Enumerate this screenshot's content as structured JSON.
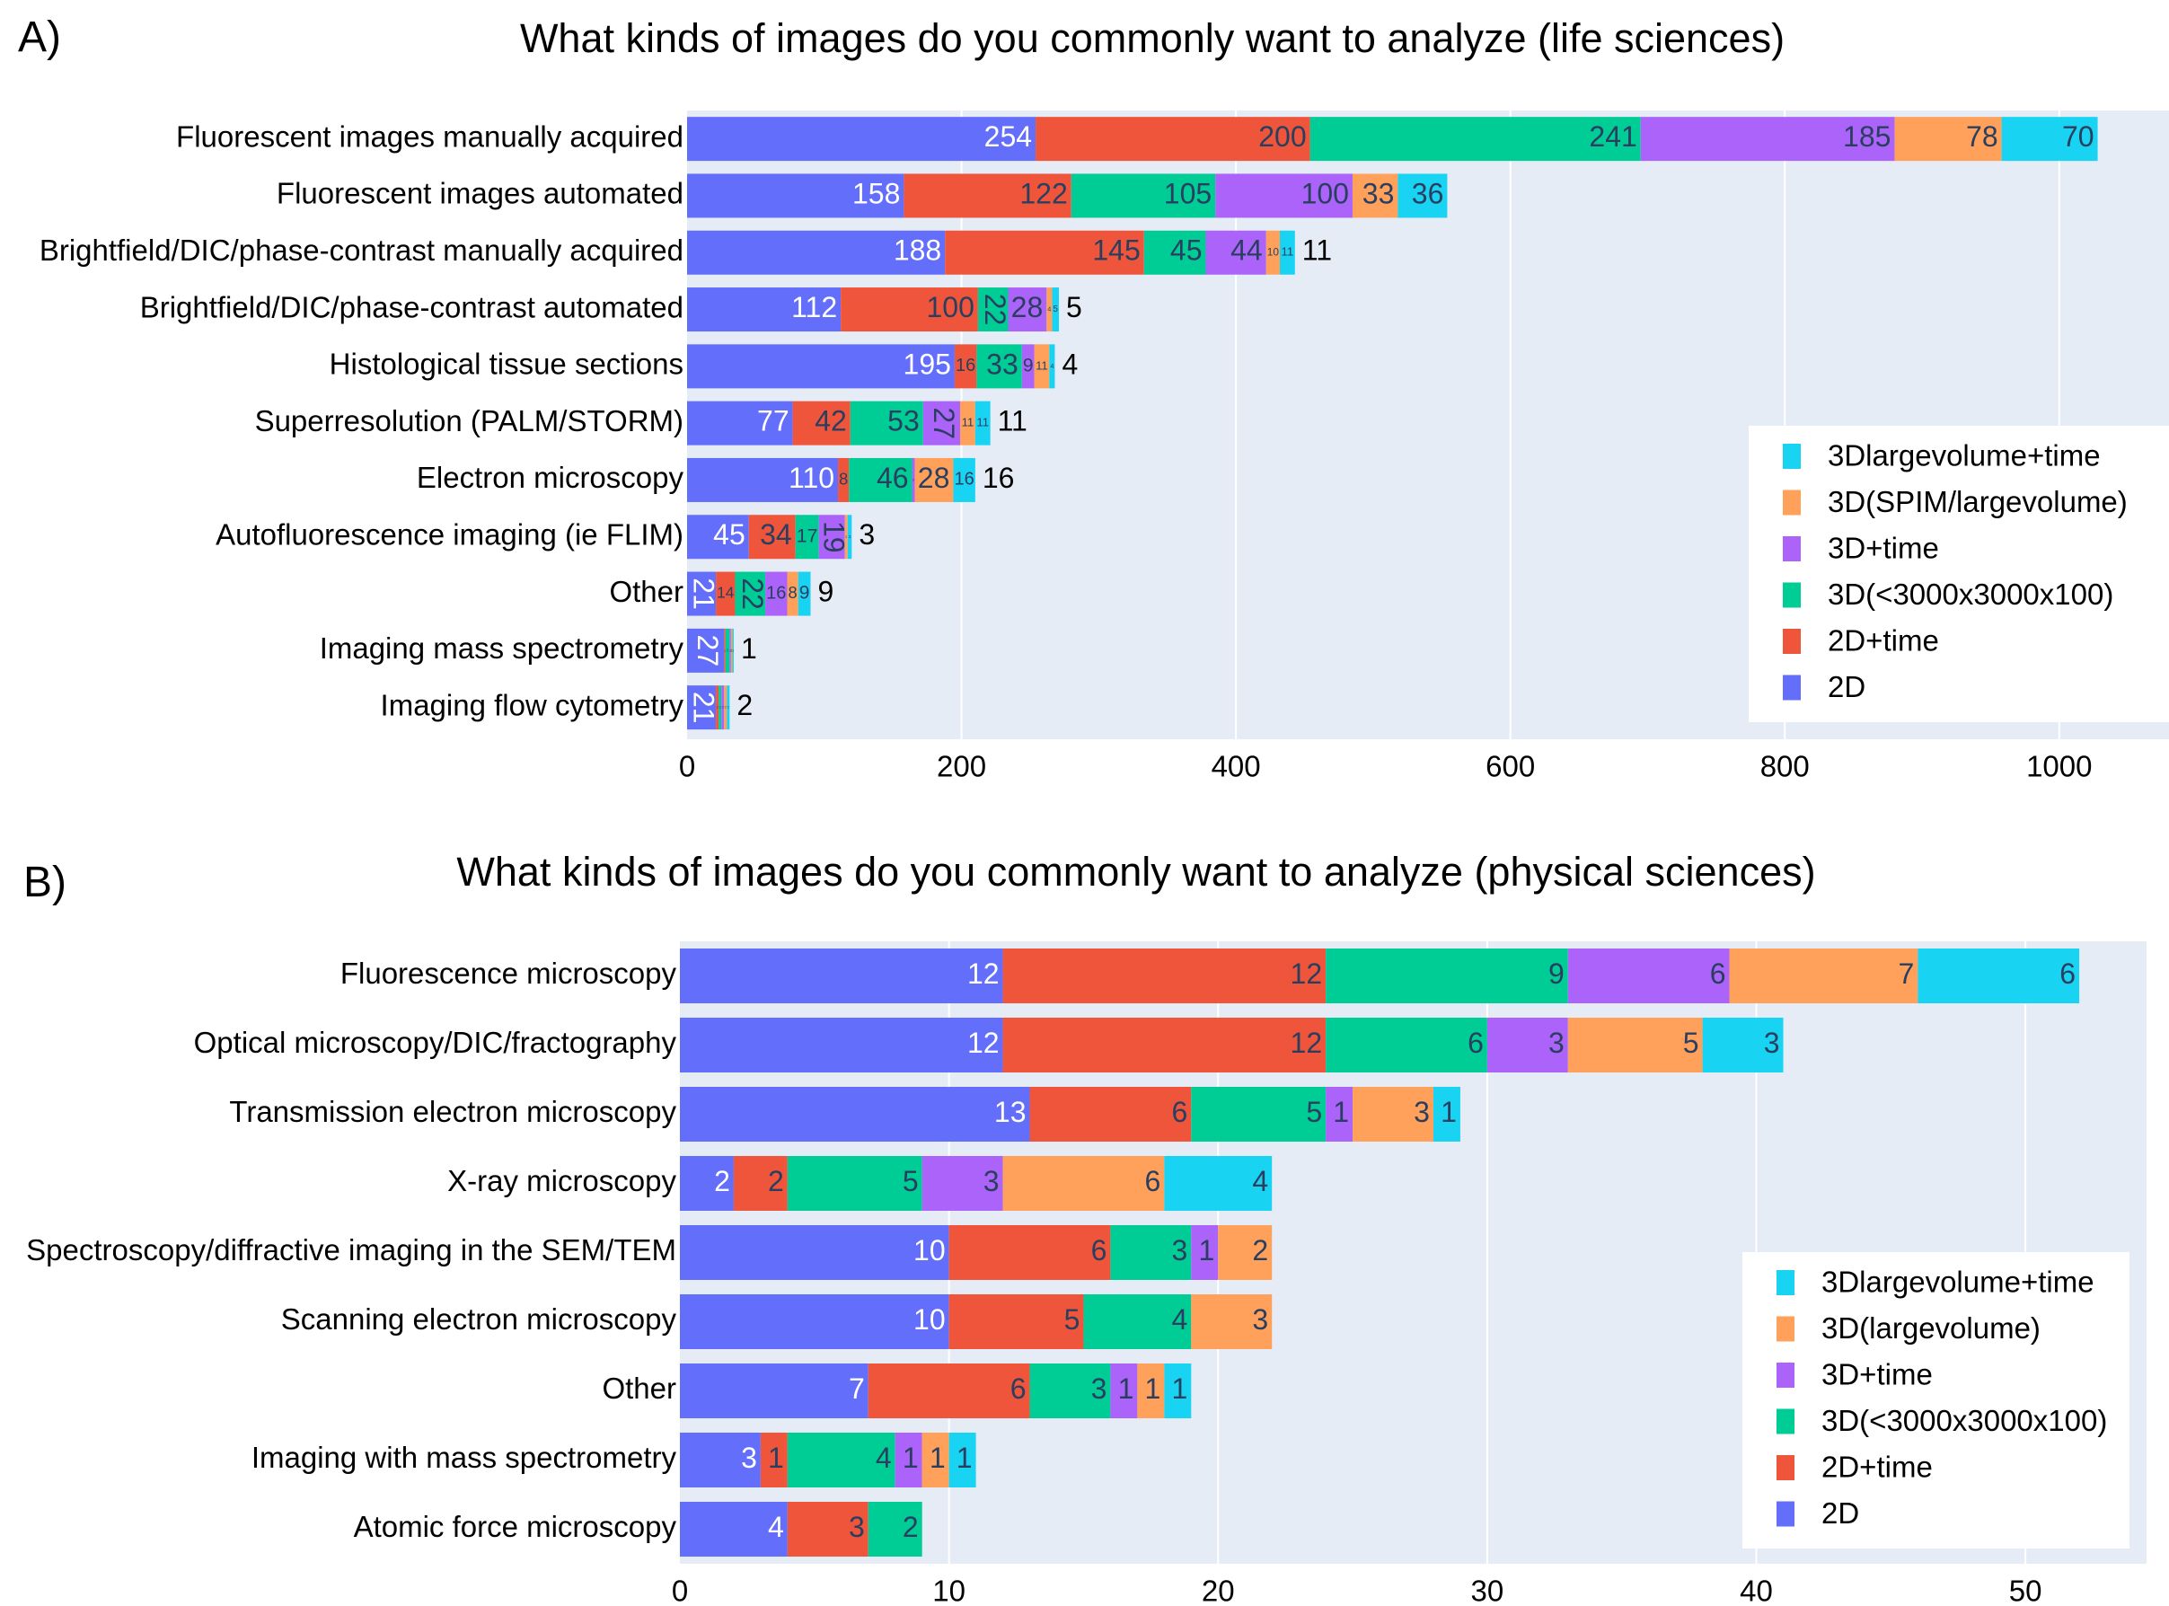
{
  "panels": [
    {
      "label": "A)"
    },
    {
      "label": "B)"
    }
  ],
  "chart_data": [
    {
      "type": "bar",
      "orientation": "horizontal",
      "stacked": true,
      "title": "What kinds of images do you commonly want to analyze (life sciences)",
      "xlim": [
        0,
        1080
      ],
      "xticks": [
        0,
        200,
        400,
        600,
        800,
        1000
      ],
      "grid": true,
      "legend_position": "bottom-right",
      "categories": [
        "Fluorescent images manually acquired",
        "Fluorescent images automated",
        "Brightfield/DIC/phase-contrast manually acquired",
        "Brightfield/DIC/phase-contrast automated",
        "Histological tissue sections",
        "Superresolution (PALM/STORM)",
        "Electron microscopy",
        "Autofluorescence imaging (ie FLIM)",
        "Other",
        "Imaging mass spectrometry",
        "Imaging flow cytometry"
      ],
      "series": [
        {
          "name": "2D",
          "color": "#636efa",
          "values": [
            254,
            158,
            188,
            112,
            195,
            77,
            110,
            45,
            21,
            27,
            21
          ]
        },
        {
          "name": "2D+time",
          "color": "#ef553b",
          "values": [
            200,
            122,
            145,
            100,
            16,
            42,
            8,
            34,
            14,
            1,
            2
          ]
        },
        {
          "name": "3D(<3000x3000x100)",
          "color": "#00cc96",
          "values": [
            241,
            105,
            45,
            22,
            33,
            53,
            46,
            17,
            22,
            3,
            2
          ]
        },
        {
          "name": "3D+time",
          "color": "#ab63fa",
          "values": [
            185,
            100,
            44,
            28,
            9,
            27,
            2,
            19,
            16,
            1,
            2
          ]
        },
        {
          "name": "3D(SPIM/largevolume)",
          "color": "#ffa15a",
          "values": [
            78,
            33,
            10,
            4,
            11,
            11,
            28,
            2,
            8,
            1,
            2
          ]
        },
        {
          "name": "3Dlargevolume+time",
          "color": "#19d3f3",
          "values": [
            70,
            36,
            11,
            5,
            4,
            11,
            16,
            3,
            9,
            1,
            2
          ]
        }
      ]
    },
    {
      "type": "bar",
      "orientation": "horizontal",
      "stacked": true,
      "title": "What kinds of images do you commonly want to analyze (physical sciences)",
      "xlim": [
        0,
        54.5
      ],
      "xticks": [
        0,
        10,
        20,
        30,
        40,
        50
      ],
      "grid": true,
      "legend_position": "bottom-right",
      "categories": [
        "Fluorescence microscopy",
        "Optical microscopy/DIC/fractography",
        "Transmission electron microscopy",
        "X-ray microscopy",
        "Spectroscopy/diffractive imaging in the SEM/TEM",
        "Scanning electron microscopy",
        "Other",
        "Imaging with mass spectrometry",
        "Atomic force microscopy"
      ],
      "series": [
        {
          "name": "2D",
          "color": "#636efa",
          "values": [
            12,
            12,
            13,
            2,
            10,
            10,
            7,
            3,
            4
          ]
        },
        {
          "name": "2D+time",
          "color": "#ef553b",
          "values": [
            12,
            12,
            6,
            2,
            6,
            5,
            6,
            1,
            3
          ]
        },
        {
          "name": "3D(<3000x3000x100)",
          "color": "#00cc96",
          "values": [
            9,
            6,
            5,
            5,
            3,
            4,
            3,
            4,
            2
          ]
        },
        {
          "name": "3D+time",
          "color": "#ab63fa",
          "values": [
            6,
            3,
            1,
            3,
            1,
            0,
            1,
            1,
            0
          ]
        },
        {
          "name": "3D(largevolume)",
          "color": "#ffa15a",
          "values": [
            7,
            5,
            3,
            6,
            2,
            3,
            1,
            1,
            0
          ]
        },
        {
          "name": "3Dlargevolume+time",
          "color": "#19d3f3",
          "values": [
            6,
            3,
            1,
            4,
            0,
            0,
            1,
            1,
            0
          ]
        }
      ]
    }
  ]
}
